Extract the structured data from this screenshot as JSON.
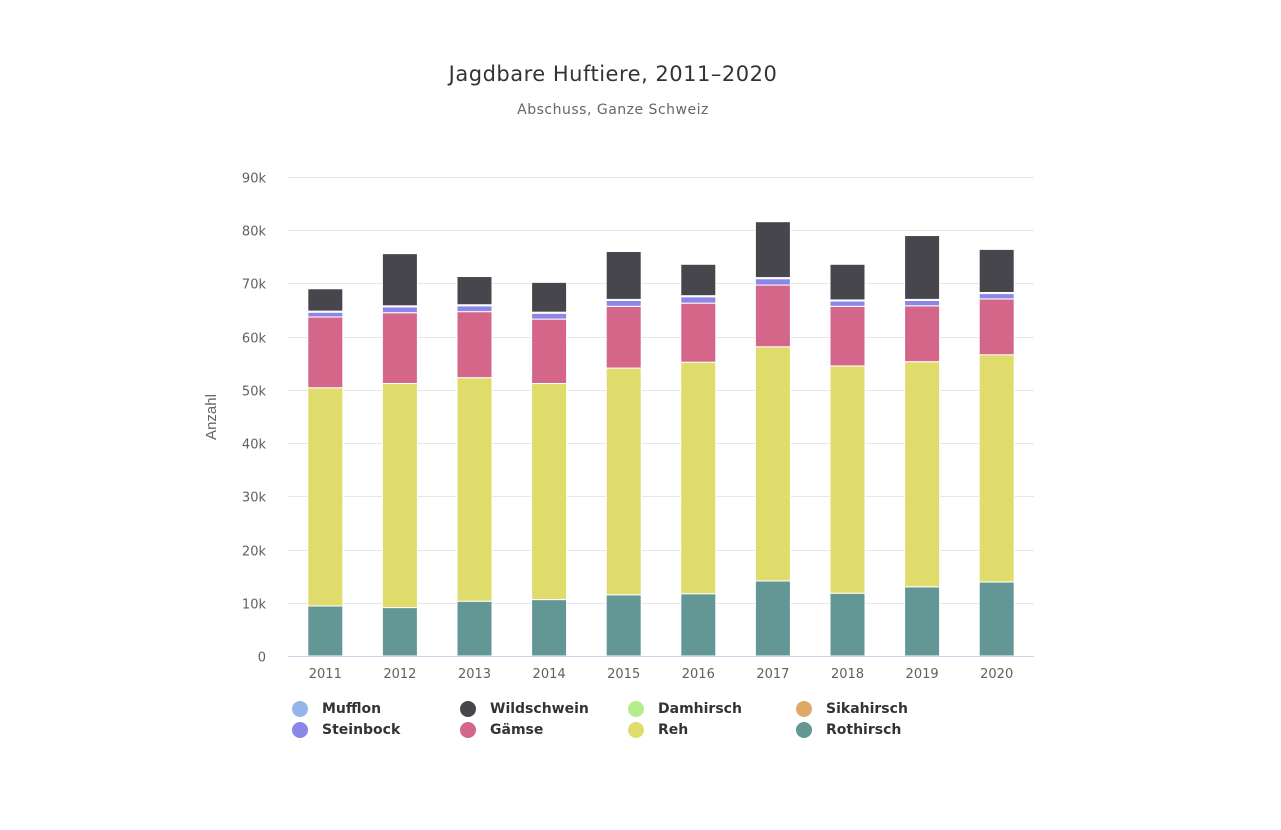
{
  "chart_data": {
    "type": "bar",
    "stacked": true,
    "title": "Jagdbare Huftiere, 2011–2020",
    "subtitle": "Abschuss, Ganze Schweiz",
    "xlabel": "",
    "ylabel": "Anzahl",
    "ylim": [
      0,
      90000
    ],
    "yticks": [
      0,
      10000,
      20000,
      30000,
      40000,
      50000,
      60000,
      70000,
      80000,
      90000
    ],
    "ytick_labels": [
      "0",
      "10k",
      "20k",
      "30k",
      "40k",
      "50k",
      "60k",
      "70k",
      "80k",
      "90k"
    ],
    "grid": true,
    "legend_position": "bottom",
    "categories": [
      "2011",
      "2012",
      "2013",
      "2014",
      "2015",
      "2016",
      "2017",
      "2018",
      "2019",
      "2020"
    ],
    "series": [
      {
        "name": "Rothirsch",
        "color": "#639796",
        "values": [
          9400,
          9100,
          10300,
          10600,
          11500,
          11700,
          14100,
          11800,
          13000,
          13900
        ]
      },
      {
        "name": "Reh",
        "color": "#e0dc6c",
        "values": [
          41000,
          42100,
          42000,
          40600,
          42600,
          43500,
          44000,
          42700,
          42300,
          42700
        ]
      },
      {
        "name": "Sikahirsch",
        "color": "#e0a865",
        "values": [
          0,
          0,
          0,
          0,
          0,
          0,
          0,
          0,
          0,
          0
        ]
      },
      {
        "name": "Damhirsch",
        "color": "#b5ec8c",
        "values": [
          0,
          0,
          0,
          0,
          0,
          0,
          0,
          0,
          0,
          0
        ]
      },
      {
        "name": "Gämse",
        "color": "#d4668a",
        "values": [
          13300,
          13300,
          12400,
          12100,
          11600,
          11100,
          11600,
          11200,
          10500,
          10500
        ]
      },
      {
        "name": "Steinbock",
        "color": "#8b87e8",
        "values": [
          900,
          1100,
          1100,
          1100,
          1100,
          1200,
          1200,
          1000,
          1000,
          1000
        ]
      },
      {
        "name": "Mufflon",
        "color": "#94b4ea",
        "values": [
          200,
          200,
          200,
          200,
          200,
          200,
          200,
          200,
          200,
          200
        ]
      },
      {
        "name": "Wildschwein",
        "color": "#47464d",
        "values": [
          4200,
          9800,
          5300,
          5600,
          9000,
          5900,
          10500,
          6700,
          12000,
          8100
        ]
      }
    ]
  },
  "legend": [
    {
      "label": "Mufflon",
      "color": "#94b4ea"
    },
    {
      "label": "Wildschwein",
      "color": "#47464d"
    },
    {
      "label": "Damhirsch",
      "color": "#b5ec8c"
    },
    {
      "label": "Sikahirsch",
      "color": "#e0a865"
    },
    {
      "label": "Steinbock",
      "color": "#8b87e8"
    },
    {
      "label": "Gämse",
      "color": "#d4668a"
    },
    {
      "label": "Reh",
      "color": "#e0dc6c"
    },
    {
      "label": "Rothirsch",
      "color": "#639796"
    }
  ]
}
